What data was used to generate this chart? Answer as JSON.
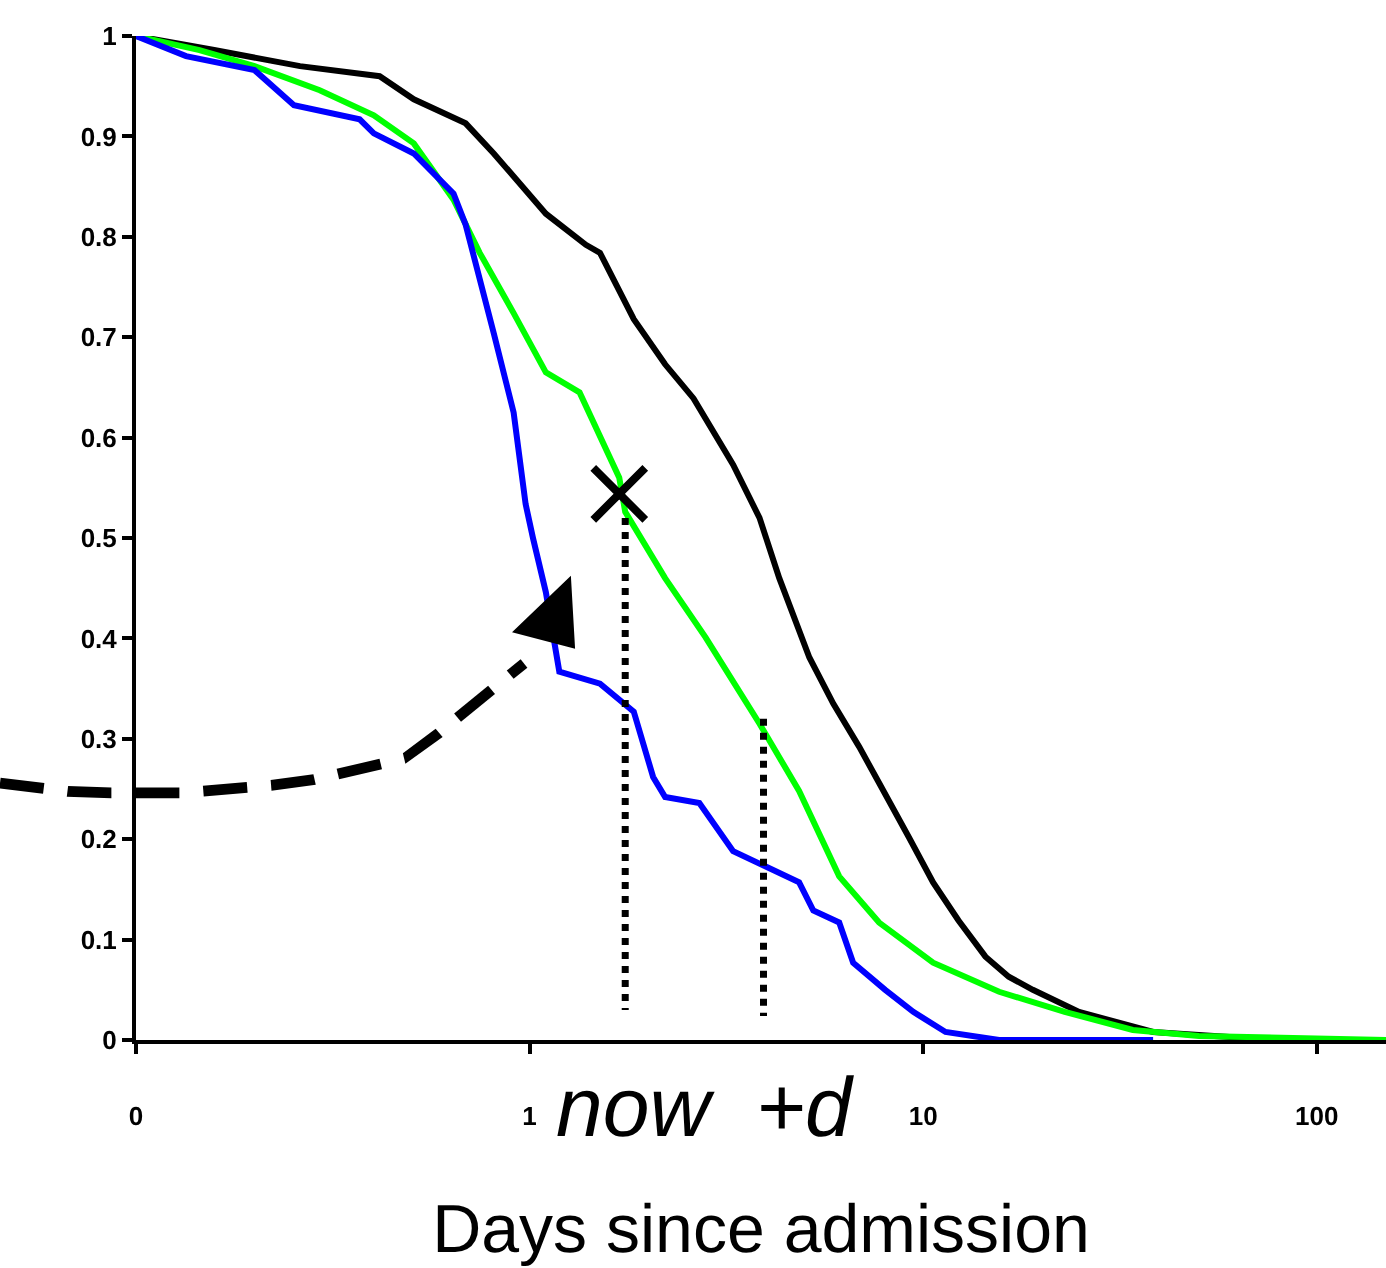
{
  "chart_data": {
    "type": "line",
    "xlabel": "Days since admission",
    "log": "x",
    "line_style": "solid",
    "marker": "none",
    "xlim": [
      0.1,
      150
    ],
    "xticks": [
      {
        "value": 0.1,
        "label": "0"
      },
      1,
      10,
      100
    ],
    "ylim": [
      0,
      1
    ],
    "yticks": [
      0,
      0.1,
      0.2,
      0.3,
      0.4,
      0.5,
      0.6,
      0.7,
      0.8,
      0.9,
      1
    ],
    "series": [
      {
        "color": "#000000",
        "x": [
          0.1,
          0.158,
          0.261,
          0.416,
          0.508,
          0.688,
          0.811,
          1.1,
          1.39,
          1.51,
          1.84,
          2.21,
          2.61,
          3.29,
          3.84,
          4.31,
          5.14,
          5.91,
          6.88,
          7.73,
          9.2,
          10.6,
          12.3,
          14.4,
          16.5,
          19.0,
          24.9,
          38.4,
          65.6,
          101
        ],
        "values": [
          1.0,
          0.986,
          0.97,
          0.96,
          0.937,
          0.913,
          0.883,
          0.823,
          0.792,
          0.784,
          0.718,
          0.673,
          0.639,
          0.573,
          0.52,
          0.46,
          0.381,
          0.335,
          0.292,
          0.256,
          0.202,
          0.157,
          0.119,
          0.083,
          0.063,
          0.05,
          0.028,
          0.008,
          0.002,
          0
        ]
      },
      {
        "color": "#00ff00",
        "x": [
          0.1,
          0.145,
          0.2,
          0.293,
          0.402,
          0.508,
          0.641,
          0.747,
          0.911,
          1.1,
          1.34,
          1.69,
          1.75,
          2.21,
          2.8,
          3.84,
          4.84,
          6.12,
          7.73,
          10.6,
          15.6,
          22.9,
          34.1,
          50.2,
          150
        ],
        "values": [
          1.0,
          0.986,
          0.97,
          0.946,
          0.921,
          0.893,
          0.837,
          0.784,
          0.724,
          0.665,
          0.645,
          0.56,
          0.526,
          0.46,
          0.401,
          0.315,
          0.248,
          0.163,
          0.117,
          0.077,
          0.048,
          0.028,
          0.01,
          0.004,
          0
        ]
      },
      {
        "color": "#0000ff",
        "x": [
          0.1,
          0.134,
          0.2,
          0.252,
          0.37,
          0.402,
          0.508,
          0.641,
          0.688,
          0.811,
          0.911,
          0.977,
          1.02,
          1.1,
          1.19,
          1.51,
          1.84,
          2.06,
          2.21,
          2.7,
          3.29,
          3.97,
          4.84,
          5.26,
          6.12,
          6.64,
          8.01,
          9.44,
          11.4,
          15.6,
          38.4
        ],
        "values": [
          1.0,
          0.98,
          0.966,
          0.931,
          0.917,
          0.903,
          0.883,
          0.843,
          0.812,
          0.704,
          0.625,
          0.534,
          0.5,
          0.446,
          0.367,
          0.355,
          0.327,
          0.262,
          0.242,
          0.236,
          0.188,
          0.173,
          0.157,
          0.129,
          0.117,
          0.077,
          0.05,
          0.028,
          0.008,
          0,
          0
        ]
      },
      {
        "type": "scatter",
        "marker": "cross",
        "color": "#000000",
        "x": [
          1.69
        ],
        "values": [
          0.544
        ]
      },
      {
        "color": "#000000",
        "line_style": "dotted",
        "x": [
          1.75,
          1.75
        ],
        "values": [
          0.52,
          0.03
        ]
      },
      {
        "color": "#000000",
        "line_style": "dotted",
        "x": [
          3.93,
          3.93
        ],
        "values": [
          0.32,
          0.024
        ]
      }
    ],
    "annotations": [
      "now",
      "+d"
    ]
  }
}
